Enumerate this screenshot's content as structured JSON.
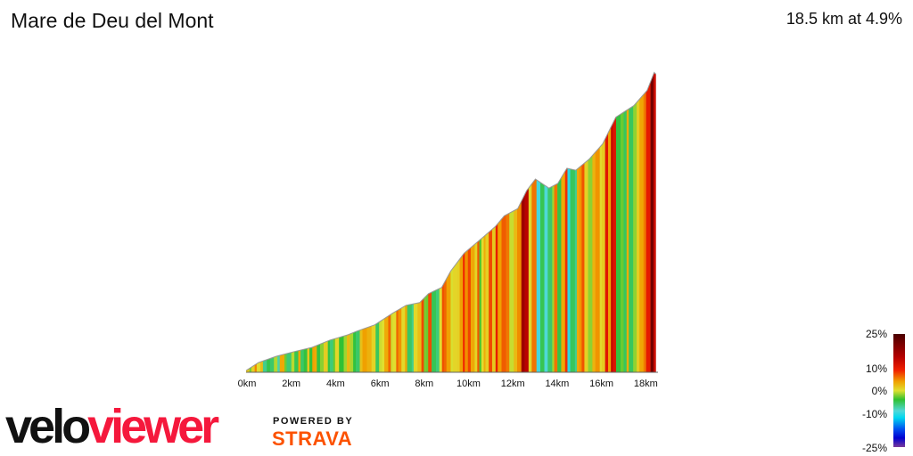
{
  "header": {
    "title": "Mare de Deu del Mont",
    "summary": "18.5 km at 4.9%"
  },
  "chart_data": {
    "type": "area",
    "title": "Mare de Deu del Mont",
    "xlabel": "",
    "ylabel": "",
    "x_ticks": [
      "0km",
      "2km",
      "4km",
      "6km",
      "8km",
      "10km",
      "12km",
      "14km",
      "16km",
      "18km"
    ],
    "xlim": [
      0,
      18.5
    ],
    "color_by": "gradient",
    "distance_km": [
      0,
      0.56,
      1.37,
      2.17,
      2.98,
      3.79,
      4.6,
      5.0,
      5.81,
      6.61,
      7.22,
      7.83,
      8.23,
      8.83,
      9.23,
      9.84,
      10.65,
      11.25,
      11.65,
      12.26,
      12.66,
      13.06,
      13.67,
      14.07,
      14.48,
      14.88,
      15.48,
      16.09,
      16.69,
      17.5,
      18.1,
      18.42,
      18.5
    ],
    "elevation_rel_m": [
      0,
      24,
      43,
      57,
      70,
      92,
      108,
      119,
      138,
      173,
      197,
      205,
      232,
      251,
      300,
      354,
      400,
      435,
      467,
      489,
      543,
      578,
      551,
      565,
      611,
      605,
      638,
      684,
      765,
      800,
      846,
      900,
      895
    ],
    "legend": {
      "labels": [
        "25%",
        "10%",
        "0%",
        "-10%",
        "-25%"
      ]
    }
  },
  "branding": {
    "logo_left": "velo",
    "logo_right": "viewer",
    "powered_by": "POWERED BY",
    "strava": "STRAVA"
  }
}
